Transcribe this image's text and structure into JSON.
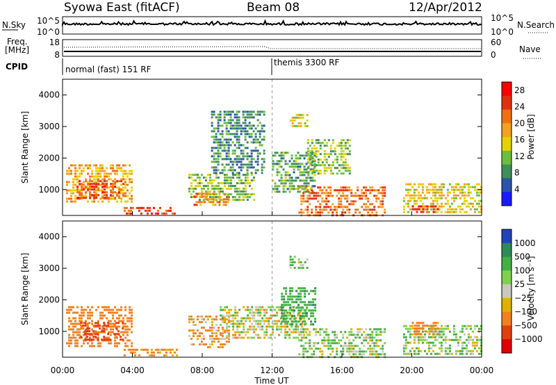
{
  "header": {
    "radar": "Syowa East (fitACF)",
    "beam": "Beam 08",
    "date": "12/Apr/2012"
  },
  "nsky_panel": {
    "left_label": "N.Sky",
    "right_label": "N.Search",
    "left_ticks": [
      "10^5",
      "10^0"
    ],
    "right_ticks": [
      "10^5",
      "10^0"
    ]
  },
  "freq_panel": {
    "left_label_1": "Freq.",
    "left_label_2": "[MHz]",
    "right_label": "Nave",
    "left_ticks": [
      "18",
      "8"
    ],
    "right_ticks": [
      "60",
      "0"
    ]
  },
  "cpid_panel": {
    "label": "CPID",
    "segments": [
      {
        "text": "normal (fast) 151 RF",
        "start_hour": 0
      },
      {
        "text": "themis 3300 RF",
        "start_hour": 12
      }
    ]
  },
  "x_axis": {
    "label": "Time UT",
    "ticks": [
      "00:00",
      "04:00",
      "08:00",
      "12:00",
      "16:00",
      "20:00",
      "00:00"
    ],
    "tick_hours": [
      0,
      4,
      8,
      12,
      16,
      20,
      24
    ]
  },
  "chart_data": [
    {
      "type": "heatmap",
      "name": "power",
      "xlabel": "Time UT",
      "ylabel": "Slant Range [km]",
      "xlim": [
        0,
        24
      ],
      "ylim": [
        180,
        4500
      ],
      "yticks": [
        1000,
        2000,
        3000,
        4000
      ],
      "colorbar": {
        "label": "Power [dB]",
        "ticks": [
          "4",
          "8",
          "12",
          "16",
          "20",
          "24",
          "28"
        ],
        "tick_values": [
          4,
          8,
          12,
          16,
          20,
          24,
          28
        ],
        "range": [
          0,
          30
        ],
        "colors": [
          "#1a1aff",
          "#2a55a8",
          "#3f8f5a",
          "#6cbf3a",
          "#e6d000",
          "#f4a020",
          "#f07010",
          "#e03010",
          "#ff0000"
        ]
      },
      "regions": [
        {
          "t0": 0.2,
          "t1": 4.0,
          "r0": 600,
          "r1": 1800,
          "level": 18
        },
        {
          "t0": 0.8,
          "t1": 3.5,
          "r0": 700,
          "r1": 1300,
          "level": 24
        },
        {
          "t0": 3.5,
          "t1": 6.5,
          "r0": 200,
          "r1": 450,
          "level": 24
        },
        {
          "t0": 7.2,
          "t1": 11.0,
          "r0": 700,
          "r1": 1500,
          "level": 12
        },
        {
          "t0": 7.5,
          "t1": 9.5,
          "r0": 500,
          "r1": 900,
          "level": 20
        },
        {
          "t0": 8.5,
          "t1": 11.5,
          "r0": 1500,
          "r1": 3500,
          "level": 8
        },
        {
          "t0": 12.0,
          "t1": 14.5,
          "r0": 900,
          "r1": 2200,
          "level": 10
        },
        {
          "t0": 13.0,
          "t1": 14.0,
          "r0": 3000,
          "r1": 3400,
          "level": 16
        },
        {
          "t0": 13.5,
          "t1": 18.5,
          "r0": 200,
          "r1": 1100,
          "level": 22
        },
        {
          "t0": 14.0,
          "t1": 16.5,
          "r0": 1500,
          "r1": 2600,
          "level": 12
        },
        {
          "t0": 19.5,
          "t1": 24.0,
          "r0": 250,
          "r1": 1200,
          "level": 16
        },
        {
          "t0": 20.0,
          "t1": 21.5,
          "r0": 300,
          "r1": 500,
          "level": 26
        }
      ]
    },
    {
      "type": "heatmap",
      "name": "velocity",
      "xlabel": "Time UT",
      "ylabel": "Slant Range [km]",
      "xlim": [
        0,
        24
      ],
      "ylim": [
        180,
        4500
      ],
      "yticks": [
        1000,
        2000,
        3000,
        4000
      ],
      "colorbar": {
        "label": "Velocity [m s⁻¹]",
        "ticks": [
          "1000",
          "500",
          "100",
          "25",
          "−25",
          "−100",
          "−500",
          "−1000"
        ],
        "tick_values": [
          1000,
          500,
          100,
          25,
          -25,
          -100,
          -500,
          -1000
        ],
        "colors": [
          "#2244bb",
          "#2e8b57",
          "#44b044",
          "#80d050",
          "#c8c8c0",
          "#e0b000",
          "#f08020",
          "#e04010",
          "#e00000"
        ]
      },
      "regions": [
        {
          "t0": 0.2,
          "t1": 4.0,
          "r0": 500,
          "r1": 1800,
          "level": -300
        },
        {
          "t0": 1.0,
          "t1": 3.5,
          "r0": 700,
          "r1": 1300,
          "level": -600
        },
        {
          "t0": 3.5,
          "t1": 6.5,
          "r0": 200,
          "r1": 450,
          "level": -150
        },
        {
          "t0": 7.2,
          "t1": 9.5,
          "r0": 500,
          "r1": 1500,
          "level": -120
        },
        {
          "t0": 9.0,
          "t1": 14.0,
          "r0": 800,
          "r1": 1800,
          "level": 0
        },
        {
          "t0": 12.5,
          "t1": 14.5,
          "r0": 1200,
          "r1": 2400,
          "level": 400
        },
        {
          "t0": 13.0,
          "t1": 14.0,
          "r0": 3000,
          "r1": 3400,
          "level": 120
        },
        {
          "t0": 13.5,
          "t1": 18.5,
          "r0": 200,
          "r1": 1100,
          "level": 80
        },
        {
          "t0": 19.5,
          "t1": 24.0,
          "r0": 250,
          "r1": 1200,
          "level": 60
        },
        {
          "t0": 20.0,
          "t1": 21.5,
          "r0": 900,
          "r1": 1300,
          "level": -200
        }
      ]
    }
  ]
}
